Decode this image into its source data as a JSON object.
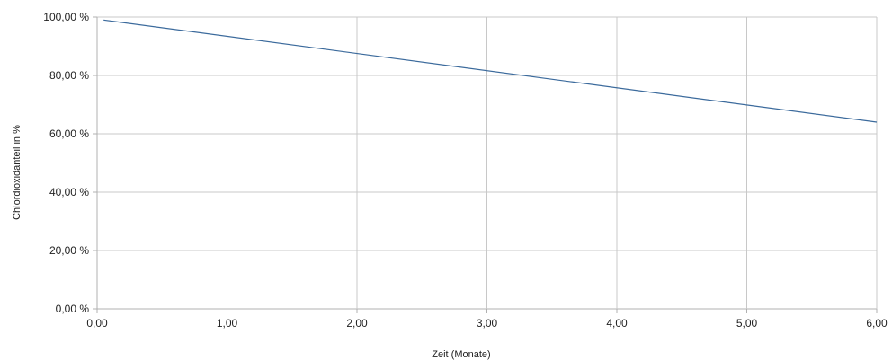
{
  "chart_data": {
    "type": "line",
    "title": "",
    "xlabel": "Zeit (Monate)",
    "ylabel": "Chlordioxidanteil in %",
    "xlim": [
      0,
      6
    ],
    "ylim": [
      0,
      100
    ],
    "x_ticks": [
      "0,00",
      "1,00",
      "2,00",
      "3,00",
      "4,00",
      "5,00",
      "6,00"
    ],
    "y_ticks": [
      "0,00 %",
      "20,00 %",
      "40,00 %",
      "60,00 %",
      "80,00 %",
      "100,00 %"
    ],
    "grid": true,
    "legend": "none",
    "series": [
      {
        "color": "#3b6a9c",
        "x": [
          0.05,
          6
        ],
        "y": [
          99,
          64
        ]
      }
    ]
  },
  "colors": {
    "grid": "#c8c8c8",
    "axis": "#b0b0b0",
    "line": "#3b6a9c"
  }
}
